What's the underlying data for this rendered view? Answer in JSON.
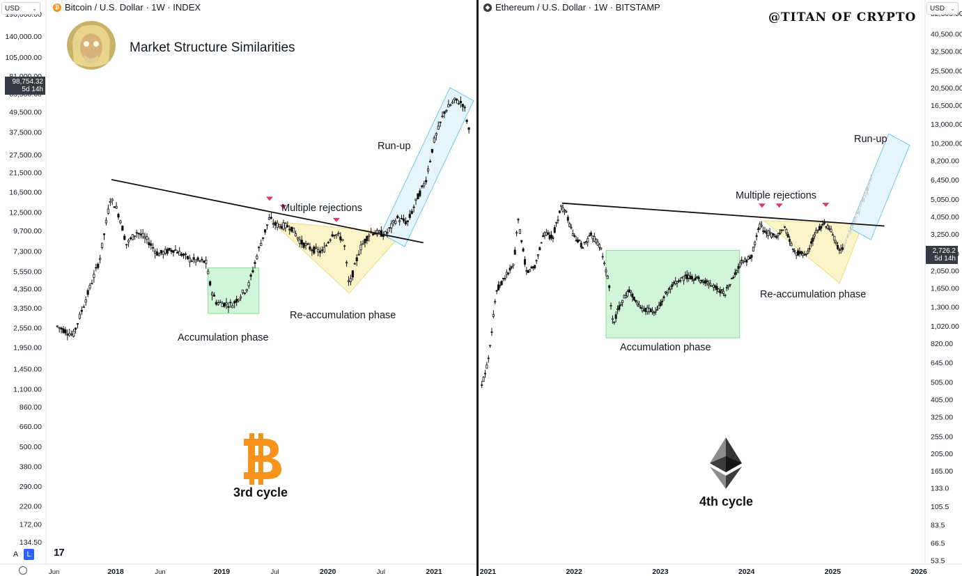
{
  "header": {
    "left_symbol": "Bitcoin / U.S. Dollar · 1W · INDEX",
    "right_symbol": "Ethereum / U.S. Dollar · 1W · BITSTAMP",
    "currency": "USD",
    "left_coin_icon": "bitcoin-icon",
    "right_coin_icon": "ethereum-icon"
  },
  "annotations": {
    "title": "Market Structure Similarities",
    "watermark": "@TITAN OF CRYPTO",
    "left": {
      "multiple_rejections": "Multiple rejections",
      "accumulation": "Accumulation phase",
      "reaccumulation": "Re-accumulation phase",
      "runup": "Run-up",
      "cycle": "3rd cycle"
    },
    "right": {
      "multiple_rejections": "Multiple rejections",
      "accumulation": "Accumulation phase",
      "reaccumulation": "Re-accumulation phase",
      "runup": "Run-up",
      "cycle": "4th cycle"
    }
  },
  "price_tags": {
    "left_value": "98,754.32",
    "left_time": "5d 14h",
    "right_value": "2,726.2",
    "right_time": "5d 14h"
  },
  "footer": {
    "auto_label": "A",
    "log_label": "L",
    "tv_logo": "17"
  },
  "colors": {
    "accumulation": "#cdf5d5",
    "accumulation_border": "#7bd88f",
    "reaccumulation": "#fcf3c4",
    "reaccumulation_border": "#ecd77c",
    "runup": "#e3f4fb",
    "runup_border": "#5cc4ea",
    "rejection_marker": "#e0356b",
    "bitcoin": "#f7931a",
    "ethereum": "#333333"
  },
  "chart_data": [
    {
      "type": "candlestick",
      "title": "Bitcoin / U.S. Dollar · 1W · INDEX",
      "y_scale": "log",
      "y_ticks": [
        "190,000.00",
        "140,000.00",
        "105,000.00",
        "81,000.00",
        "63,500.00",
        "49,500.00",
        "37,500.00",
        "27,500.00",
        "21,500.00",
        "16,500.00",
        "12,500.00",
        "9,700.00",
        "7,300.00",
        "5,550.00",
        "4,350.00",
        "3,350.00",
        "2,550.00",
        "1,950.00",
        "1,450.00",
        "1,100.00",
        "860.00",
        "660.00",
        "500.00",
        "380.00",
        "290.00",
        "220.00",
        "172.00",
        "134.50"
      ],
      "x_ticks": [
        "Jun",
        "2018",
        "Jun",
        "2019",
        "Jul",
        "2020",
        "Jul",
        "2021"
      ],
      "price_path": [
        [
          2017.45,
          2600
        ],
        [
          2017.6,
          2300
        ],
        [
          2017.75,
          4300
        ],
        [
          2017.85,
          6500
        ],
        [
          2017.95,
          15000
        ],
        [
          2018.0,
          13500
        ],
        [
          2018.05,
          11000
        ],
        [
          2018.1,
          8000
        ],
        [
          2018.2,
          9500
        ],
        [
          2018.3,
          8500
        ],
        [
          2018.4,
          7000
        ],
        [
          2018.55,
          7500
        ],
        [
          2018.7,
          6500
        ],
        [
          2018.85,
          6300
        ],
        [
          2018.9,
          4300
        ],
        [
          2018.95,
          3600
        ],
        [
          2019.1,
          3500
        ],
        [
          2019.25,
          4500
        ],
        [
          2019.35,
          7500
        ],
        [
          2019.45,
          11500
        ],
        [
          2019.5,
          10500
        ],
        [
          2019.65,
          10200
        ],
        [
          2019.75,
          8200
        ],
        [
          2019.85,
          7500
        ],
        [
          2019.95,
          7200
        ],
        [
          2020.05,
          9500
        ],
        [
          2020.15,
          8500
        ],
        [
          2020.2,
          4500
        ],
        [
          2020.3,
          7500
        ],
        [
          2020.4,
          9500
        ],
        [
          2020.55,
          9200
        ],
        [
          2020.65,
          11500
        ],
        [
          2020.75,
          10800
        ],
        [
          2020.85,
          15500
        ],
        [
          2020.92,
          19000
        ],
        [
          2021.0,
          33000
        ],
        [
          2021.1,
          50000
        ],
        [
          2021.2,
          58000
        ],
        [
          2021.28,
          55000
        ],
        [
          2021.33,
          38000
        ]
      ],
      "descending_trendline": [
        [
          2017.96,
          19500
        ],
        [
          2020.9,
          8200
        ]
      ],
      "accumulation_box": {
        "x": [
          2018.87,
          2019.35
        ],
        "y": [
          3100,
          5800
        ]
      },
      "reaccumulation_triangle": [
        [
          2019.47,
          11000
        ],
        [
          2020.7,
          9300
        ],
        [
          2020.2,
          4100
        ]
      ],
      "runup_channel": {
        "start": [
          2020.5,
          9300
        ],
        "end": [
          2021.15,
          69000
        ]
      },
      "rejection_markers": [
        [
          2019.45,
          15000
        ],
        [
          2019.58,
          13400
        ],
        [
          2020.08,
          11200
        ]
      ],
      "current_price": 98754.32
    },
    {
      "type": "candlestick",
      "title": "Ethereum / U.S. Dollar · 1W · BITSTAMP",
      "y_scale": "log",
      "y_ticks": [
        "52,500.00",
        "40,500.00",
        "32,500.00",
        "25,500.00",
        "20,500.00",
        "16,500.00",
        "13,000.00",
        "10,200.00",
        "8,200.00",
        "6,450.00",
        "5,050.00",
        "4,050.00",
        "3,250.00",
        "2,550.00",
        "2,050.00",
        "1,650.00",
        "1,300.00",
        "1,020.00",
        "820.00",
        "645.00",
        "505.00",
        "405.00",
        "325.00",
        "255.00",
        "205.00",
        "165.00",
        "133.0",
        "105.5",
        "83.5",
        "66.5",
        "53.5"
      ],
      "x_ticks": [
        "2021",
        "2022",
        "2023",
        "2024",
        "2025",
        "2026"
      ],
      "price_path": [
        [
          2020.93,
          480
        ],
        [
          2021.0,
          650
        ],
        [
          2021.1,
          1600
        ],
        [
          2021.2,
          1900
        ],
        [
          2021.3,
          2200
        ],
        [
          2021.35,
          3900
        ],
        [
          2021.45,
          2000
        ],
        [
          2021.55,
          2200
        ],
        [
          2021.65,
          3300
        ],
        [
          2021.75,
          3100
        ],
        [
          2021.85,
          4600
        ],
        [
          2021.9,
          4300
        ],
        [
          2022.0,
          3100
        ],
        [
          2022.1,
          2800
        ],
        [
          2022.2,
          3200
        ],
        [
          2022.3,
          2800
        ],
        [
          2022.4,
          1800
        ],
        [
          2022.45,
          1050
        ],
        [
          2022.55,
          1400
        ],
        [
          2022.65,
          1600
        ],
        [
          2022.75,
          1300
        ],
        [
          2022.85,
          1250
        ],
        [
          2022.95,
          1200
        ],
        [
          2023.05,
          1500
        ],
        [
          2023.2,
          1800
        ],
        [
          2023.3,
          1900
        ],
        [
          2023.45,
          1850
        ],
        [
          2023.6,
          1700
        ],
        [
          2023.75,
          1550
        ],
        [
          2023.85,
          1900
        ],
        [
          2023.95,
          2300
        ],
        [
          2024.05,
          2400
        ],
        [
          2024.15,
          3600
        ],
        [
          2024.25,
          3300
        ],
        [
          2024.35,
          3100
        ],
        [
          2024.45,
          3500
        ],
        [
          2024.55,
          2600
        ],
        [
          2024.7,
          2500
        ],
        [
          2024.8,
          3300
        ],
        [
          2024.9,
          3700
        ],
        [
          2025.0,
          3300
        ],
        [
          2025.08,
          2600
        ],
        [
          2025.12,
          2726
        ]
      ],
      "descending_trendline": [
        [
          2021.86,
          4800
        ],
        [
          2025.6,
          3600
        ]
      ],
      "accumulation_box": {
        "x": [
          2022.37,
          2023.92
        ],
        "y": [
          880,
          2650
        ]
      },
      "reaccumulation_triangle": [
        [
          2024.2,
          3850
        ],
        [
          2025.35,
          3700
        ],
        [
          2025.08,
          1750
        ]
      ],
      "runup_channel": {
        "start": [
          2025.2,
          3500
        ],
        "end": [
          2025.65,
          11500
        ]
      },
      "rejection_markers": [
        [
          2024.18,
          4650
        ],
        [
          2024.38,
          4650
        ],
        [
          2024.92,
          4700
        ]
      ],
      "current_price": 2726.2
    }
  ]
}
